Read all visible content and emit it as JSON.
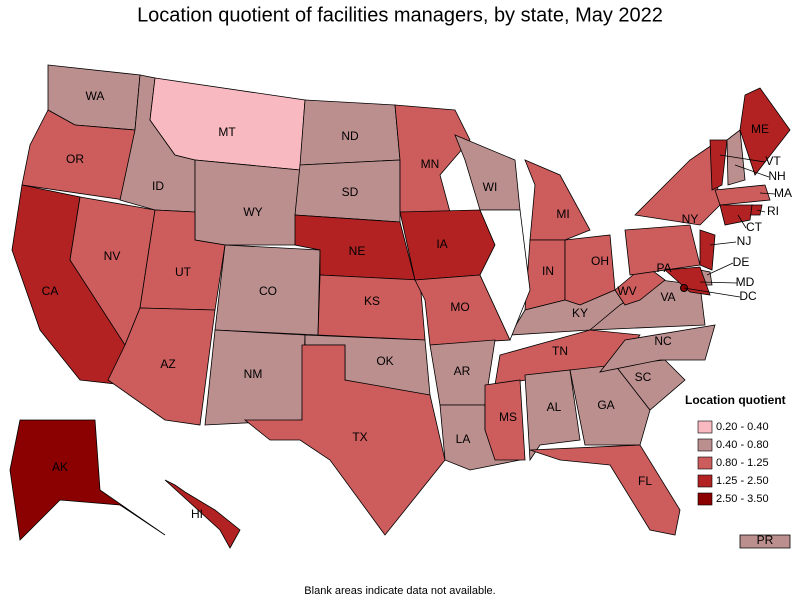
{
  "title": "Location quotient of facilities managers, by state, May 2022",
  "note": "Blank areas indicate data not available.",
  "legend": {
    "title": "Location quotient",
    "items": [
      {
        "label": "0.20 - 0.40",
        "color": "#f9b9c0"
      },
      {
        "label": "0.40 - 0.80",
        "color": "#bc8f8f"
      },
      {
        "label": "0.80 - 1.25",
        "color": "#cd5c5c"
      },
      {
        "label": "1.25 - 2.50",
        "color": "#b22222"
      },
      {
        "label": "2.50 - 3.50",
        "color": "#8b0000"
      }
    ]
  },
  "states": [
    {
      "abbr": "WA",
      "color": "#bc8f8f"
    },
    {
      "abbr": "OR",
      "color": "#cd5c5c"
    },
    {
      "abbr": "CA",
      "color": "#b22222"
    },
    {
      "abbr": "NV",
      "color": "#cd5c5c"
    },
    {
      "abbr": "ID",
      "color": "#bc8f8f"
    },
    {
      "abbr": "MT",
      "color": "#f9b9c0"
    },
    {
      "abbr": "WY",
      "color": "#bc8f8f"
    },
    {
      "abbr": "UT",
      "color": "#cd5c5c"
    },
    {
      "abbr": "CO",
      "color": "#bc8f8f"
    },
    {
      "abbr": "AZ",
      "color": "#cd5c5c"
    },
    {
      "abbr": "NM",
      "color": "#bc8f8f"
    },
    {
      "abbr": "ND",
      "color": "#bc8f8f"
    },
    {
      "abbr": "SD",
      "color": "#bc8f8f"
    },
    {
      "abbr": "NE",
      "color": "#b22222"
    },
    {
      "abbr": "KS",
      "color": "#cd5c5c"
    },
    {
      "abbr": "OK",
      "color": "#bc8f8f"
    },
    {
      "abbr": "TX",
      "color": "#cd5c5c"
    },
    {
      "abbr": "MN",
      "color": "#cd5c5c"
    },
    {
      "abbr": "IA",
      "color": "#b22222"
    },
    {
      "abbr": "MO",
      "color": "#cd5c5c"
    },
    {
      "abbr": "AR",
      "color": "#bc8f8f"
    },
    {
      "abbr": "LA",
      "color": "#bc8f8f"
    },
    {
      "abbr": "WI",
      "color": "#bc8f8f"
    },
    {
      "abbr": "MI",
      "color": "#cd5c5c"
    },
    {
      "abbr": "IN",
      "color": "#cd5c5c"
    },
    {
      "abbr": "OH",
      "color": "#cd5c5c"
    },
    {
      "abbr": "KY",
      "color": "#bc8f8f"
    },
    {
      "abbr": "TN",
      "color": "#cd5c5c"
    },
    {
      "abbr": "MS",
      "color": "#cd5c5c"
    },
    {
      "abbr": "AL",
      "color": "#bc8f8f"
    },
    {
      "abbr": "GA",
      "color": "#bc8f8f"
    },
    {
      "abbr": "FL",
      "color": "#cd5c5c"
    },
    {
      "abbr": "SC",
      "color": "#bc8f8f"
    },
    {
      "abbr": "NC",
      "color": "#bc8f8f"
    },
    {
      "abbr": "VA",
      "color": "#bc8f8f"
    },
    {
      "abbr": "WV",
      "color": "#cd5c5c"
    },
    {
      "abbr": "PA",
      "color": "#cd5c5c"
    },
    {
      "abbr": "NY",
      "color": "#cd5c5c"
    },
    {
      "abbr": "VT",
      "color": "#b22222"
    },
    {
      "abbr": "NH",
      "color": "#bc8f8f"
    },
    {
      "abbr": "ME",
      "color": "#b22222"
    },
    {
      "abbr": "MA",
      "color": "#cd5c5c"
    },
    {
      "abbr": "RI",
      "color": "#b22222"
    },
    {
      "abbr": "CT",
      "color": "#b22222"
    },
    {
      "abbr": "NJ",
      "color": "#b22222"
    },
    {
      "abbr": "DE",
      "color": "#bc8f8f"
    },
    {
      "abbr": "MD",
      "color": "#b22222"
    },
    {
      "abbr": "DC",
      "color": "#8b0000"
    },
    {
      "abbr": "AK",
      "color": "#8b0000"
    },
    {
      "abbr": "HI",
      "color": "#b22222"
    },
    {
      "abbr": "PR",
      "color": "#bc8f8f"
    }
  ]
}
